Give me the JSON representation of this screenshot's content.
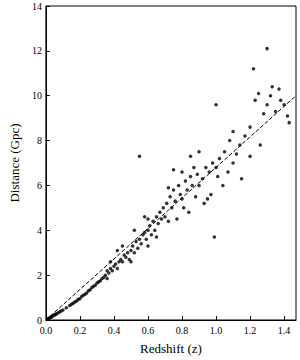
{
  "chart_data": {
    "type": "scatter",
    "x_label": "Redshift (z)",
    "y_label": "Distance (Gpc)",
    "xlim": [
      0,
      1.47
    ],
    "ylim": [
      0,
      14
    ],
    "xticks": [
      {
        "value": 0,
        "label": "0.0"
      },
      0.2,
      0.4,
      0.6,
      0.8,
      {
        "value": 1,
        "label": "1.0"
      },
      1.2,
      1.4
    ],
    "yticks": [
      0,
      2,
      4,
      6,
      8,
      10,
      12,
      14
    ],
    "grid": false,
    "series": [
      {
        "type": "scatter",
        "color": "#000000",
        "marker": "circle",
        "x": [
          0.01,
          0.015,
          0.02,
          0.025,
          0.03,
          0.035,
          0.04,
          0.05,
          0.055,
          0.06,
          0.07,
          0.08,
          0.09,
          0.1,
          0.12,
          0.14,
          0.15,
          0.16,
          0.17,
          0.18,
          0.19,
          0.2,
          0.21,
          0.22,
          0.23,
          0.24,
          0.25,
          0.26,
          0.27,
          0.28,
          0.29,
          0.3,
          0.31,
          0.32,
          0.33,
          0.34,
          0.35,
          0.36,
          0.36,
          0.37,
          0.38,
          0.39,
          0.4,
          0.41,
          0.42,
          0.43,
          0.44,
          0.45,
          0.46,
          0.47,
          0.48,
          0.49,
          0.5,
          0.5,
          0.42,
          0.45,
          0.38,
          0.51,
          0.52,
          0.53,
          0.54,
          0.55,
          0.55,
          0.56,
          0.57,
          0.58,
          0.59,
          0.6,
          0.6,
          0.61,
          0.62,
          0.63,
          0.64,
          0.65,
          0.66,
          0.67,
          0.68,
          0.69,
          0.7,
          0.6,
          0.65,
          0.52,
          0.58,
          0.71,
          0.72,
          0.73,
          0.74,
          0.75,
          0.76,
          0.77,
          0.78,
          0.79,
          0.8,
          0.8,
          0.81,
          0.82,
          0.83,
          0.84,
          0.85,
          0.86,
          0.87,
          0.88,
          0.89,
          0.9,
          0.9,
          0.92,
          0.93,
          0.94,
          0.95,
          0.96,
          0.97,
          0.98,
          0.99,
          1.0,
          1.0,
          0.75,
          0.85,
          0.72,
          1.01,
          1.02,
          1.04,
          1.05,
          1.07,
          1.08,
          1.1,
          1.1,
          1.12,
          1.14,
          1.15,
          1.17,
          1.2,
          1.2,
          1.22,
          1.23,
          1.25,
          1.26,
          1.28,
          1.3,
          1.3,
          1.32,
          1.33,
          1.35,
          1.37,
          1.38,
          1.4,
          1.42,
          1.43
        ],
        "values": [
          0.04,
          0.07,
          0.09,
          0.11,
          0.13,
          0.15,
          0.18,
          0.22,
          0.25,
          0.27,
          0.31,
          0.36,
          0.4,
          0.45,
          0.55,
          0.65,
          0.7,
          0.75,
          0.8,
          0.85,
          0.92,
          0.95,
          1.05,
          1.1,
          1.15,
          1.2,
          1.3,
          1.35,
          1.45,
          1.5,
          1.55,
          1.65,
          1.7,
          1.75,
          1.85,
          1.9,
          2.0,
          1.85,
          2.2,
          2.1,
          2.3,
          2.2,
          2.4,
          2.5,
          2.3,
          2.6,
          2.7,
          2.6,
          2.9,
          2.8,
          3.0,
          2.7,
          3.1,
          2.6,
          3.1,
          3.3,
          2.6,
          3.3,
          3.0,
          3.5,
          3.2,
          3.6,
          7.3,
          3.4,
          3.8,
          3.9,
          3.6,
          4.0,
          4.5,
          4.2,
          3.8,
          4.4,
          4.0,
          4.6,
          4.3,
          4.8,
          4.5,
          5.0,
          4.6,
          3.3,
          3.7,
          4.0,
          4.6,
          5.2,
          4.4,
          5.5,
          5.0,
          5.8,
          5.3,
          4.5,
          6.0,
          5.6,
          5.4,
          6.6,
          5.0,
          6.2,
          5.8,
          4.8,
          6.4,
          6.0,
          6.8,
          5.5,
          6.5,
          6.0,
          7.5,
          6.3,
          5.2,
          6.8,
          5.4,
          6.6,
          5.6,
          7.0,
          3.7,
          9.6,
          6.8,
          6.7,
          7.3,
          5.9,
          6.4,
          7.2,
          6.0,
          7.5,
          6.6,
          8.0,
          7.0,
          8.4,
          7.4,
          7.8,
          6.3,
          8.2,
          8.6,
          7.3,
          11.2,
          9.8,
          10.1,
          7.8,
          9.2,
          9.6,
          12.1,
          10.0,
          10.4,
          9.3,
          10.3,
          9.8,
          9.6,
          9.1,
          8.8
        ]
      },
      {
        "type": "line",
        "color": "#000000",
        "line_style": "dashed",
        "x": [
          0,
          1.47
        ],
        "values": [
          0,
          10
        ]
      }
    ]
  }
}
